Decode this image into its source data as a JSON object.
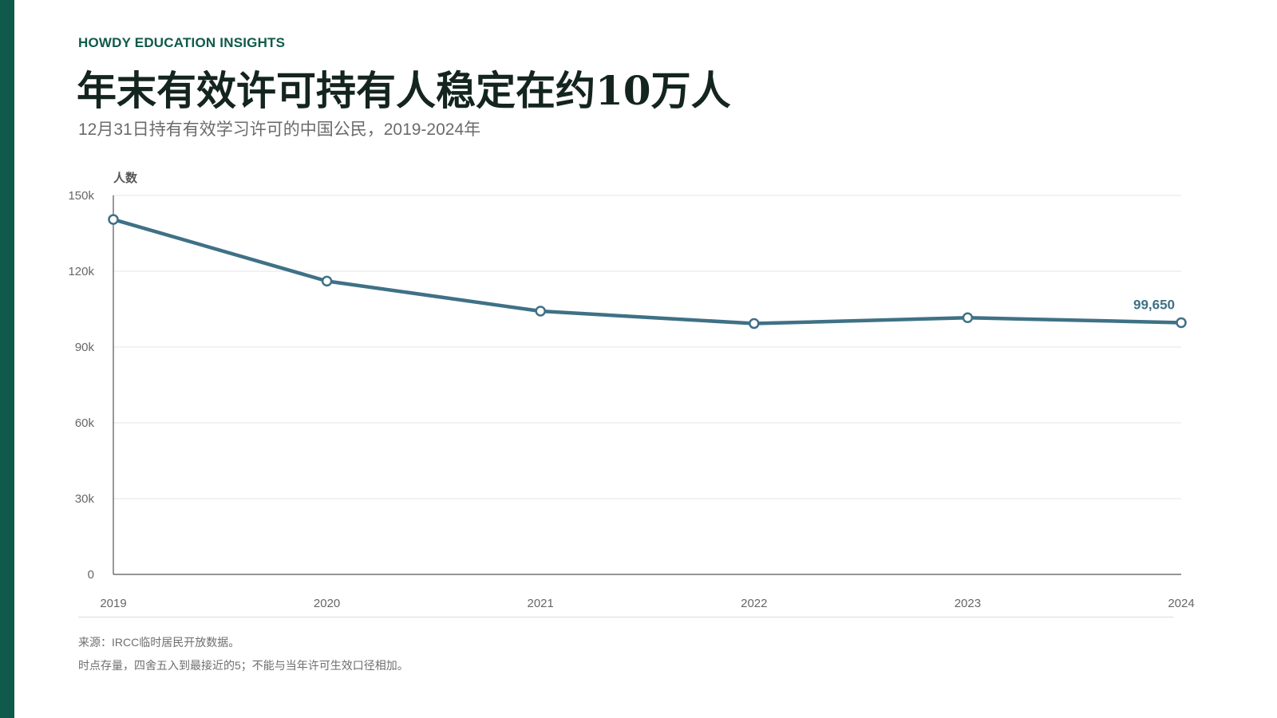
{
  "header": {
    "brand": "HOWDY EDUCATION INSIGHTS",
    "title": "年末有效许可持有人稳定在约10万人",
    "subtitle": "12月31日持有有效学习许可的中国公民，2019-2024年"
  },
  "footer": {
    "source": "来源：IRCC临时居民开放数据。",
    "note": "时点存量，四舍五入到最接近的5；不能与当年许可生效口径相加。"
  },
  "colors": {
    "accent": "#0f5a4a",
    "line": "#3f7186"
  },
  "chart_data": {
    "type": "line",
    "title": "",
    "ylabel": "人数",
    "xlabel": "",
    "categories": [
      "2019",
      "2020",
      "2021",
      "2022",
      "2023",
      "2024"
    ],
    "y_ticks": [
      0,
      30000,
      60000,
      90000,
      120000,
      150000
    ],
    "y_tick_labels": [
      "0",
      "30k",
      "60k",
      "90k",
      "120k",
      "150k"
    ],
    "ylim": [
      0,
      150000
    ],
    "grid": true,
    "series": [
      {
        "values": [
          140500,
          116100,
          104200,
          99300,
          101600,
          99650
        ]
      }
    ],
    "annotation": {
      "index": 5,
      "text": "99,650"
    }
  }
}
